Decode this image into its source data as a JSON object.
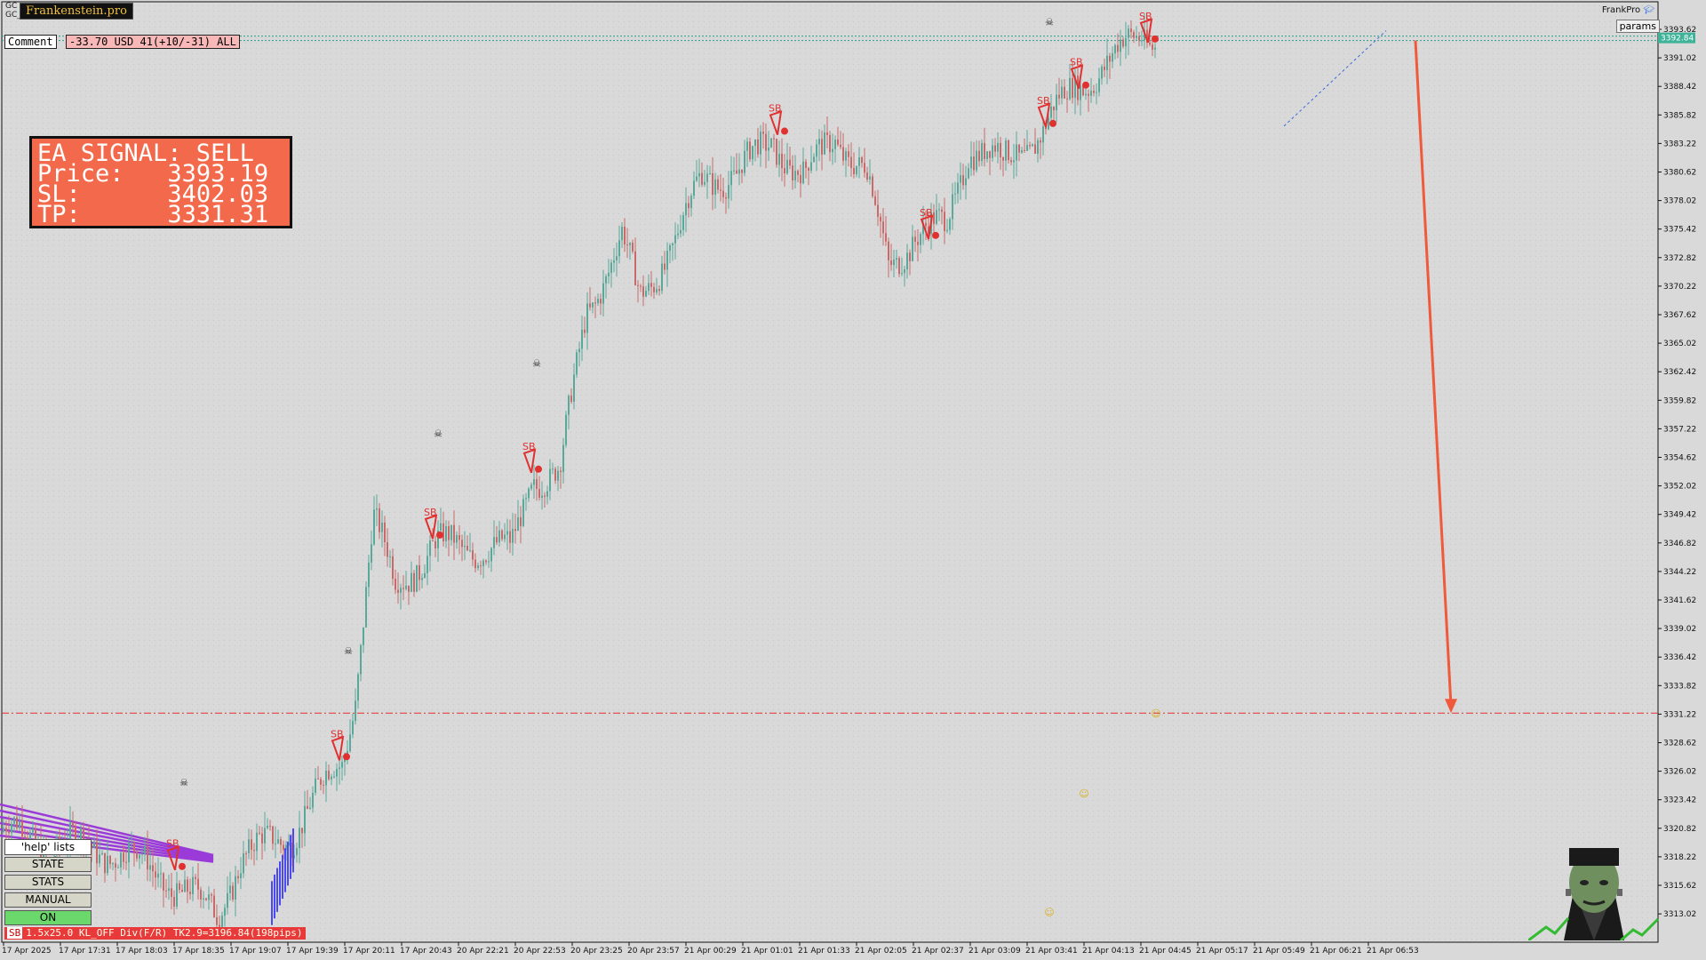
{
  "brand": "Frankenstein.pro",
  "symbol_label": [
    "GC",
    "GC_..."
  ],
  "comment": {
    "label": "Comment",
    "value": "-33.70 USD 41(+10/-31) ALL"
  },
  "signal_box": {
    "line1": "EA SIGNAL: SELL",
    "price_label": "Price:",
    "price": "3393.19",
    "sl_label": "SL:",
    "sl": "3402.03",
    "tp_label": "TP:",
    "tp": "3331.31"
  },
  "top_right": {
    "profile": "FrankPro",
    "params_button": "params"
  },
  "side_panel": {
    "help": "'help' lists cmds",
    "buttons": [
      {
        "label": "STATE",
        "state": "off"
      },
      {
        "label": "STATS",
        "state": "off"
      },
      {
        "label": "MANUAL",
        "state": "off"
      },
      {
        "label": "ON",
        "state": "on"
      }
    ]
  },
  "status_bar": {
    "tag": "SB",
    "text": "1.5x25.0 KL_OFF Div(F/R) TK2.9=3196.84(198pips)"
  },
  "current_price_label": "3392.84",
  "price_axis": [
    "3393.62",
    "3391.02",
    "3388.42",
    "3385.82",
    "3383.22",
    "3380.62",
    "3378.02",
    "3375.42",
    "3372.82",
    "3370.22",
    "3367.62",
    "3365.02",
    "3362.42",
    "3359.82",
    "3357.22",
    "3354.62",
    "3352.02",
    "3349.42",
    "3346.82",
    "3344.22",
    "3341.62",
    "3339.02",
    "3336.42",
    "3333.82",
    "3331.22",
    "3328.62",
    "3326.02",
    "3323.42",
    "3320.82",
    "3318.22",
    "3315.62",
    "3313.02"
  ],
  "time_axis": [
    "17 Apr 2025",
    "17 Apr 17:31",
    "17 Apr 18:03",
    "17 Apr 18:35",
    "17 Apr 19:07",
    "17 Apr 19:39",
    "17 Apr 20:11",
    "17 Apr 20:43",
    "20 Apr 22:21",
    "20 Apr 22:53",
    "20 Apr 23:25",
    "20 Apr 23:57",
    "21 Apr 00:29",
    "21 Apr 01:01",
    "21 Apr 01:33",
    "21 Apr 02:05",
    "21 Apr 02:37",
    "21 Apr 03:09",
    "21 Apr 03:41",
    "21 Apr 04:13",
    "21 Apr 04:45",
    "21 Apr 05:17",
    "21 Apr 05:49",
    "21 Apr 06:21",
    "21 Apr 06:53"
  ],
  "sb_label": "SB",
  "colors": {
    "background": "#d9d9d9",
    "bull": "#5aa89a",
    "bear": "#c96a6a",
    "signal_red": "#e03030",
    "tp_line": "#e03030",
    "arrow": "#f05a3c",
    "bid_line": "#2aa08a",
    "purple": "#9a3ad8",
    "blue": "#4a4af0"
  },
  "chart_data": {
    "type": "candlestick",
    "ylim": [
      3311.5,
      3395.0
    ],
    "tp_level": 3331.31,
    "bid_level": 3392.84,
    "path_anchors": [
      [
        0,
        3320.5
      ],
      [
        140,
        3318.5
      ],
      [
        200,
        3315.5
      ],
      [
        245,
        3313.0
      ],
      [
        270,
        3318.0
      ],
      [
        330,
        3320.5
      ],
      [
        385,
        3327.0
      ],
      [
        400,
        3333.0
      ],
      [
        420,
        3349.0
      ],
      [
        445,
        3343.0
      ],
      [
        490,
        3346.5
      ],
      [
        540,
        3346.5
      ],
      [
        575,
        3346.0
      ],
      [
        600,
        3353.0
      ],
      [
        630,
        3353.0
      ],
      [
        660,
        3368.0
      ],
      [
        700,
        3374.5
      ],
      [
        720,
        3369.0
      ],
      [
        760,
        3374.5
      ],
      [
        790,
        3380.0
      ],
      [
        830,
        3380.5
      ],
      [
        870,
        3383.5
      ],
      [
        905,
        3380.0
      ],
      [
        940,
        3384.0
      ],
      [
        975,
        3380.5
      ],
      [
        1000,
        3372.0
      ],
      [
        1030,
        3375.0
      ],
      [
        1065,
        3375.5
      ],
      [
        1090,
        3383.0
      ],
      [
        1130,
        3381.5
      ],
      [
        1175,
        3384.5
      ],
      [
        1210,
        3388.5
      ],
      [
        1250,
        3390.5
      ],
      [
        1285,
        3393.5
      ],
      [
        1300,
        3393.0
      ]
    ],
    "sb_markers": [
      [
        195,
        3318.8
      ],
      [
        380,
        3328.8
      ],
      [
        485,
        3349.0
      ],
      [
        596,
        3355.0
      ],
      [
        873,
        3385.8
      ],
      [
        1043,
        3376.3
      ],
      [
        1175,
        3386.5
      ],
      [
        1212,
        3390.0
      ],
      [
        1290,
        3394.2
      ]
    ],
    "skulls": [
      [
        207,
        3325.0
      ],
      [
        392,
        3337.0
      ],
      [
        493,
        3356.8
      ],
      [
        604,
        3363.2
      ],
      [
        1181,
        3394.3
      ]
    ],
    "smileys": [
      [
        1301,
        3331.3
      ],
      [
        1220,
        3324.0
      ],
      [
        1181,
        3313.2
      ]
    ]
  }
}
